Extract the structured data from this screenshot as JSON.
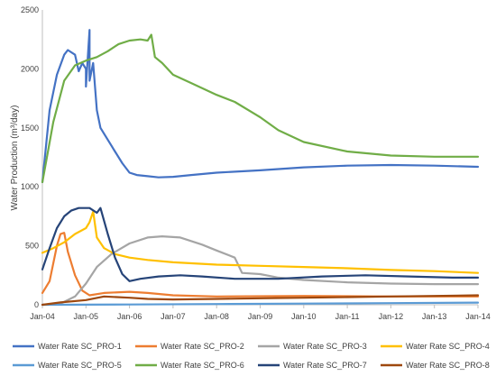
{
  "chart_data": {
    "type": "line",
    "title": "",
    "xlabel": "",
    "ylabel": "Water Production (m³/day)",
    "ylim": [
      0,
      2500
    ],
    "yticks": [
      0,
      500,
      1000,
      1500,
      2000,
      2500
    ],
    "xlim": [
      "2004-01",
      "2014-01"
    ],
    "xticks": [
      "Jan-04",
      "Jan-05",
      "Jan-06",
      "Jan-07",
      "Jan-08",
      "Jan-09",
      "Jan-10",
      "Jan-11",
      "Jan-12",
      "Jan-13",
      "Jan-14"
    ],
    "grid": false,
    "legend_position": "bottom",
    "series": [
      {
        "name": "Water Rate SC_PRO-1",
        "color": "#4472C4",
        "points": [
          [
            "2004-01",
            1040
          ],
          [
            "2004-03",
            1650
          ],
          [
            "2004-05",
            1950
          ],
          [
            "2004-07",
            2120
          ],
          [
            "2004-08",
            2160
          ],
          [
            "2004-10",
            2120
          ],
          [
            "2004-11",
            1980
          ],
          [
            "2004-12",
            2050
          ],
          [
            "2005-01",
            2000
          ],
          [
            "2005-01",
            1850
          ],
          [
            "2005-02",
            2330
          ],
          [
            "2005-02",
            1900
          ],
          [
            "2005-03",
            2050
          ],
          [
            "2005-04",
            1650
          ],
          [
            "2005-05",
            1500
          ],
          [
            "2005-06",
            1450
          ],
          [
            "2005-08",
            1350
          ],
          [
            "2005-09",
            1300
          ],
          [
            "2005-11",
            1200
          ],
          [
            "2006-01",
            1120
          ],
          [
            "2006-03",
            1100
          ],
          [
            "2006-06",
            1090
          ],
          [
            "2006-09",
            1080
          ],
          [
            "2007-01",
            1085
          ],
          [
            "2007-06",
            1100
          ],
          [
            "2008-01",
            1120
          ],
          [
            "2009-01",
            1140
          ],
          [
            "2010-01",
            1165
          ],
          [
            "2011-01",
            1180
          ],
          [
            "2012-01",
            1185
          ],
          [
            "2013-01",
            1180
          ],
          [
            "2014-01",
            1170
          ]
        ]
      },
      {
        "name": "Water Rate SC_PRO-2",
        "color": "#ED7D31",
        "points": [
          [
            "2004-01",
            100
          ],
          [
            "2004-03",
            200
          ],
          [
            "2004-05",
            500
          ],
          [
            "2004-06",
            600
          ],
          [
            "2004-07",
            610
          ],
          [
            "2004-08",
            450
          ],
          [
            "2004-10",
            250
          ],
          [
            "2004-12",
            120
          ],
          [
            "2005-02",
            80
          ],
          [
            "2005-06",
            100
          ],
          [
            "2006-01",
            110
          ],
          [
            "2006-06",
            100
          ],
          [
            "2007-01",
            80
          ],
          [
            "2008-01",
            70
          ],
          [
            "2010-01",
            75
          ],
          [
            "2012-01",
            70
          ],
          [
            "2014-01",
            70
          ]
        ]
      },
      {
        "name": "Water Rate SC_PRO-3",
        "color": "#A5A5A5",
        "points": [
          [
            "2004-01",
            0
          ],
          [
            "2004-06",
            10
          ],
          [
            "2004-10",
            70
          ],
          [
            "2005-01",
            180
          ],
          [
            "2005-04",
            320
          ],
          [
            "2005-08",
            430
          ],
          [
            "2006-01",
            520
          ],
          [
            "2006-06",
            570
          ],
          [
            "2006-10",
            580
          ],
          [
            "2007-03",
            570
          ],
          [
            "2007-09",
            510
          ],
          [
            "2008-01",
            460
          ],
          [
            "2008-06",
            400
          ],
          [
            "2008-08",
            270
          ],
          [
            "2009-01",
            260
          ],
          [
            "2009-06",
            230
          ],
          [
            "2010-01",
            210
          ],
          [
            "2011-01",
            190
          ],
          [
            "2012-01",
            180
          ],
          [
            "2013-01",
            175
          ],
          [
            "2014-01",
            175
          ]
        ]
      },
      {
        "name": "Water Rate SC_PRO-4",
        "color": "#FFC000",
        "points": [
          [
            "2004-01",
            440
          ],
          [
            "2004-04",
            480
          ],
          [
            "2004-07",
            530
          ],
          [
            "2004-10",
            600
          ],
          [
            "2005-01",
            650
          ],
          [
            "2005-02",
            700
          ],
          [
            "2005-03",
            790
          ],
          [
            "2005-04",
            570
          ],
          [
            "2005-06",
            480
          ],
          [
            "2005-09",
            430
          ],
          [
            "2006-01",
            400
          ],
          [
            "2006-06",
            380
          ],
          [
            "2007-01",
            360
          ],
          [
            "2008-01",
            340
          ],
          [
            "2009-01",
            330
          ],
          [
            "2010-01",
            320
          ],
          [
            "2011-01",
            310
          ],
          [
            "2012-01",
            295
          ],
          [
            "2013-01",
            285
          ],
          [
            "2014-01",
            270
          ]
        ]
      },
      {
        "name": "Water Rate SC_PRO-5",
        "color": "#5B9BD5",
        "points": [
          [
            "2004-01",
            0
          ],
          [
            "2006-01",
            2
          ],
          [
            "2008-01",
            6
          ],
          [
            "2010-01",
            10
          ],
          [
            "2012-01",
            14
          ],
          [
            "2014-01",
            18
          ]
        ]
      },
      {
        "name": "Water Rate SC_PRO-6",
        "color": "#70AD47",
        "points": [
          [
            "2004-01",
            1040
          ],
          [
            "2004-04",
            1550
          ],
          [
            "2004-07",
            1900
          ],
          [
            "2004-10",
            2030
          ],
          [
            "2005-01",
            2070
          ],
          [
            "2005-04",
            2100
          ],
          [
            "2005-07",
            2150
          ],
          [
            "2005-10",
            2210
          ],
          [
            "2006-01",
            2240
          ],
          [
            "2006-04",
            2250
          ],
          [
            "2006-06",
            2240
          ],
          [
            "2006-07",
            2290
          ],
          [
            "2006-08",
            2100
          ],
          [
            "2006-10",
            2050
          ],
          [
            "2007-01",
            1950
          ],
          [
            "2007-06",
            1880
          ],
          [
            "2008-01",
            1780
          ],
          [
            "2008-06",
            1720
          ],
          [
            "2009-01",
            1590
          ],
          [
            "2009-06",
            1480
          ],
          [
            "2010-01",
            1380
          ],
          [
            "2011-01",
            1300
          ],
          [
            "2012-01",
            1265
          ],
          [
            "2013-01",
            1255
          ],
          [
            "2014-01",
            1255
          ]
        ]
      },
      {
        "name": "Water Rate SC_PRO-7",
        "color": "#264478",
        "points": [
          [
            "2004-01",
            300
          ],
          [
            "2004-03",
            480
          ],
          [
            "2004-05",
            650
          ],
          [
            "2004-07",
            750
          ],
          [
            "2004-09",
            800
          ],
          [
            "2004-11",
            820
          ],
          [
            "2005-02",
            820
          ],
          [
            "2005-04",
            780
          ],
          [
            "2005-05",
            820
          ],
          [
            "2005-07",
            600
          ],
          [
            "2005-09",
            400
          ],
          [
            "2005-11",
            260
          ],
          [
            "2006-01",
            200
          ],
          [
            "2006-04",
            220
          ],
          [
            "2006-09",
            240
          ],
          [
            "2007-03",
            250
          ],
          [
            "2007-09",
            240
          ],
          [
            "2008-06",
            220
          ],
          [
            "2009-06",
            220
          ],
          [
            "2010-06",
            240
          ],
          [
            "2011-06",
            250
          ],
          [
            "2012-06",
            240
          ],
          [
            "2013-06",
            230
          ],
          [
            "2014-01",
            230
          ]
        ]
      },
      {
        "name": "Water Rate SC_PRO-8",
        "color": "#9E480E",
        "points": [
          [
            "2004-01",
            0
          ],
          [
            "2004-06",
            20
          ],
          [
            "2005-01",
            40
          ],
          [
            "2005-06",
            70
          ],
          [
            "2006-01",
            60
          ],
          [
            "2006-06",
            50
          ],
          [
            "2007-01",
            45
          ],
          [
            "2008-01",
            50
          ],
          [
            "2009-01",
            55
          ],
          [
            "2010-01",
            60
          ],
          [
            "2011-01",
            65
          ],
          [
            "2012-01",
            70
          ],
          [
            "2013-01",
            75
          ],
          [
            "2014-01",
            80
          ]
        ]
      }
    ]
  }
}
